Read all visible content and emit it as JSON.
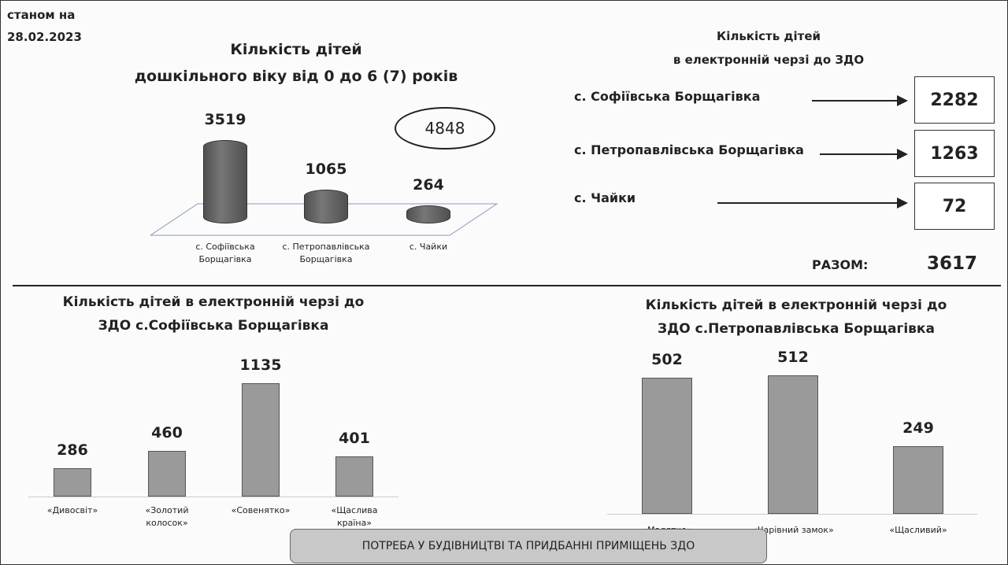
{
  "date_note": [
    "станом на",
    "28.02.2023"
  ],
  "chart_data": [
    {
      "type": "cylinder",
      "title": [
        "Кількість дітей",
        "дошкільного віку від 0 до 6 (7) років"
      ],
      "categories": [
        "с. Софіївська Борщагівка",
        "с. Петропавлівська Борщагівка",
        "с. Чайки"
      ],
      "values": [
        3519,
        1065,
        264
      ],
      "total": 4848,
      "color": "#505050"
    },
    {
      "type": "bar",
      "title": [
        "Кількість дітей в електронній черзі до",
        "ЗДО с.Софіївська Борщагівка"
      ],
      "categories": [
        "«Дивосвіт»",
        "«Золотий колосок»",
        "«Совенятко»",
        "«Щаслива країна»"
      ],
      "values": [
        286,
        460,
        1135,
        401
      ],
      "color": "#9a9a9a"
    },
    {
      "type": "bar",
      "title": [
        "Кількість дітей в електронній черзі до",
        "ЗДО с.Петропавлівська Борщагівка"
      ],
      "categories": [
        "«Малятко»",
        "«Чарівний замок»",
        "«Щасливий»"
      ],
      "values": [
        502,
        512,
        249
      ],
      "color": "#9a9a9a"
    }
  ],
  "queue": {
    "title": [
      "Кількість дітей",
      "в електронній черзі до ЗДО"
    ],
    "rows": [
      {
        "label": "с. Софіївська Борщагівка",
        "value": 2282
      },
      {
        "label": "с. Петропавлівська Борщагівка",
        "value": 1263
      },
      {
        "label": "с. Чайки",
        "value": 72
      }
    ],
    "total_label": "РАЗОМ:",
    "total": 3617
  },
  "footer": "ПОТРЕБА У БУДІВНИЦТВІ ТА ПРИДБАННІ ПРИМІЩЕНЬ ЗДО"
}
